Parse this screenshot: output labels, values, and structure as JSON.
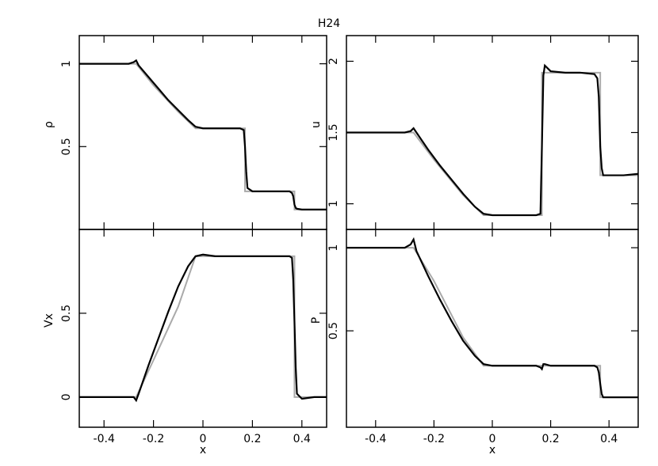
{
  "title": "H24",
  "chart_data": [
    {
      "type": "line",
      "ylabel": "ρ",
      "xlim": [
        -0.5,
        0.5
      ],
      "xticks": [
        -0.4,
        -0.2,
        0,
        0.2,
        0.4
      ],
      "xtick_labels": false,
      "ylim": [
        0,
        1.17
      ],
      "yticks": [
        0.5,
        1
      ],
      "series": [
        {
          "color": "#aaaaaa",
          "x": [
            -0.5,
            -0.27,
            -0.2,
            -0.1,
            -0.03,
            0.17,
            0.17,
            0.37,
            0.37,
            0.5
          ],
          "values": [
            1,
            1,
            0.87,
            0.71,
            0.61,
            0.61,
            0.23,
            0.23,
            0.12,
            0.12
          ]
        },
        {
          "color": "#000000",
          "x": [
            -0.5,
            -0.4,
            -0.3,
            -0.28,
            -0.27,
            -0.26,
            -0.22,
            -0.18,
            -0.14,
            -0.1,
            -0.06,
            -0.03,
            0,
            0.05,
            0.1,
            0.15,
            0.165,
            0.17,
            0.175,
            0.18,
            0.2,
            0.25,
            0.3,
            0.35,
            0.36,
            0.365,
            0.37,
            0.375,
            0.38,
            0.4,
            0.45,
            0.5
          ],
          "values": [
            1,
            1,
            1,
            1.01,
            1.02,
            0.99,
            0.92,
            0.85,
            0.78,
            0.72,
            0.66,
            0.62,
            0.61,
            0.61,
            0.61,
            0.61,
            0.6,
            0.5,
            0.35,
            0.25,
            0.23,
            0.23,
            0.23,
            0.23,
            0.22,
            0.2,
            0.15,
            0.13,
            0.125,
            0.12,
            0.12,
            0.12
          ]
        }
      ]
    },
    {
      "type": "line",
      "ylabel": "u",
      "xlim": [
        -0.5,
        0.5
      ],
      "xticks": [
        -0.4,
        -0.2,
        0,
        0.2,
        0.4
      ],
      "xtick_labels": false,
      "ylim": [
        0.82,
        2.18
      ],
      "yticks": [
        1,
        1.5,
        2
      ],
      "series": [
        {
          "color": "#aaaaaa",
          "x": [
            -0.5,
            -0.27,
            -0.2,
            -0.1,
            -0.03,
            0.17,
            0.17,
            0.37,
            0.37,
            0.5
          ],
          "values": [
            1.5,
            1.5,
            1.31,
            1.06,
            0.92,
            0.92,
            1.92,
            1.92,
            1.2,
            1.2
          ]
        },
        {
          "color": "#000000",
          "x": [
            -0.5,
            -0.4,
            -0.3,
            -0.28,
            -0.27,
            -0.26,
            -0.22,
            -0.18,
            -0.14,
            -0.1,
            -0.06,
            -0.03,
            0,
            0.05,
            0.1,
            0.15,
            0.165,
            0.17,
            0.175,
            0.18,
            0.2,
            0.25,
            0.3,
            0.35,
            0.36,
            0.365,
            0.37,
            0.375,
            0.38,
            0.4,
            0.45,
            0.5
          ],
          "values": [
            1.5,
            1.5,
            1.5,
            1.51,
            1.53,
            1.5,
            1.38,
            1.27,
            1.17,
            1.07,
            0.98,
            0.93,
            0.92,
            0.92,
            0.92,
            0.92,
            0.93,
            1.4,
            1.9,
            1.97,
            1.93,
            1.92,
            1.92,
            1.91,
            1.88,
            1.75,
            1.4,
            1.25,
            1.2,
            1.2,
            1.2,
            1.21
          ]
        }
      ]
    },
    {
      "type": "line",
      "ylabel": "Vx",
      "xlabel": "x",
      "xlim": [
        -0.5,
        0.5
      ],
      "xticks": [
        -0.4,
        -0.2,
        0,
        0.2,
        0.4
      ],
      "xtick_labels": true,
      "ylim": [
        -0.18,
        1.0
      ],
      "yticks": [
        0,
        0.5
      ],
      "series": [
        {
          "color": "#aaaaaa",
          "x": [
            -0.5,
            -0.27,
            -0.2,
            -0.1,
            -0.03,
            0.17,
            0.17,
            0.37,
            0.37,
            0.5
          ],
          "values": [
            0,
            0,
            0.22,
            0.54,
            0.84,
            0.84,
            0.84,
            0.84,
            0,
            0
          ]
        },
        {
          "color": "#000000",
          "x": [
            -0.5,
            -0.4,
            -0.3,
            -0.28,
            -0.27,
            -0.26,
            -0.22,
            -0.18,
            -0.14,
            -0.1,
            -0.06,
            -0.03,
            0,
            0.05,
            0.1,
            0.15,
            0.165,
            0.17,
            0.175,
            0.18,
            0.2,
            0.25,
            0.3,
            0.35,
            0.36,
            0.365,
            0.37,
            0.375,
            0.38,
            0.4,
            0.45,
            0.5
          ],
          "values": [
            0,
            0,
            0,
            0,
            -0.02,
            0.02,
            0.19,
            0.35,
            0.51,
            0.66,
            0.78,
            0.84,
            0.85,
            0.84,
            0.84,
            0.84,
            0.84,
            0.84,
            0.84,
            0.84,
            0.84,
            0.84,
            0.84,
            0.84,
            0.83,
            0.7,
            0.45,
            0.18,
            0.02,
            -0.01,
            0,
            0
          ]
        }
      ]
    },
    {
      "type": "line",
      "ylabel": "P",
      "xlabel": "x",
      "xlim": [
        -0.5,
        0.5
      ],
      "xticks": [
        -0.4,
        -0.2,
        0,
        0.2,
        0.4
      ],
      "xtick_labels": true,
      "ylim": [
        -0.08,
        1.11
      ],
      "yticks": [
        0.5,
        1
      ],
      "series": [
        {
          "color": "#aaaaaa",
          "x": [
            -0.5,
            -0.27,
            -0.2,
            -0.1,
            -0.03,
            0.17,
            0.17,
            0.37,
            0.37,
            0.5
          ],
          "values": [
            1,
            1,
            0.8,
            0.46,
            0.29,
            0.29,
            0.29,
            0.29,
            0.1,
            0.1
          ]
        },
        {
          "color": "#000000",
          "x": [
            -0.5,
            -0.4,
            -0.3,
            -0.28,
            -0.27,
            -0.26,
            -0.22,
            -0.18,
            -0.14,
            -0.1,
            -0.06,
            -0.03,
            0,
            0.05,
            0.1,
            0.15,
            0.165,
            0.17,
            0.175,
            0.18,
            0.2,
            0.25,
            0.3,
            0.35,
            0.36,
            0.365,
            0.37,
            0.375,
            0.38,
            0.4,
            0.45,
            0.5
          ],
          "values": [
            1,
            1,
            1,
            1.02,
            1.05,
            0.98,
            0.83,
            0.69,
            0.56,
            0.44,
            0.35,
            0.3,
            0.29,
            0.29,
            0.29,
            0.29,
            0.28,
            0.27,
            0.3,
            0.3,
            0.29,
            0.29,
            0.29,
            0.29,
            0.28,
            0.25,
            0.18,
            0.12,
            0.1,
            0.1,
            0.1,
            0.1
          ]
        }
      ]
    }
  ]
}
